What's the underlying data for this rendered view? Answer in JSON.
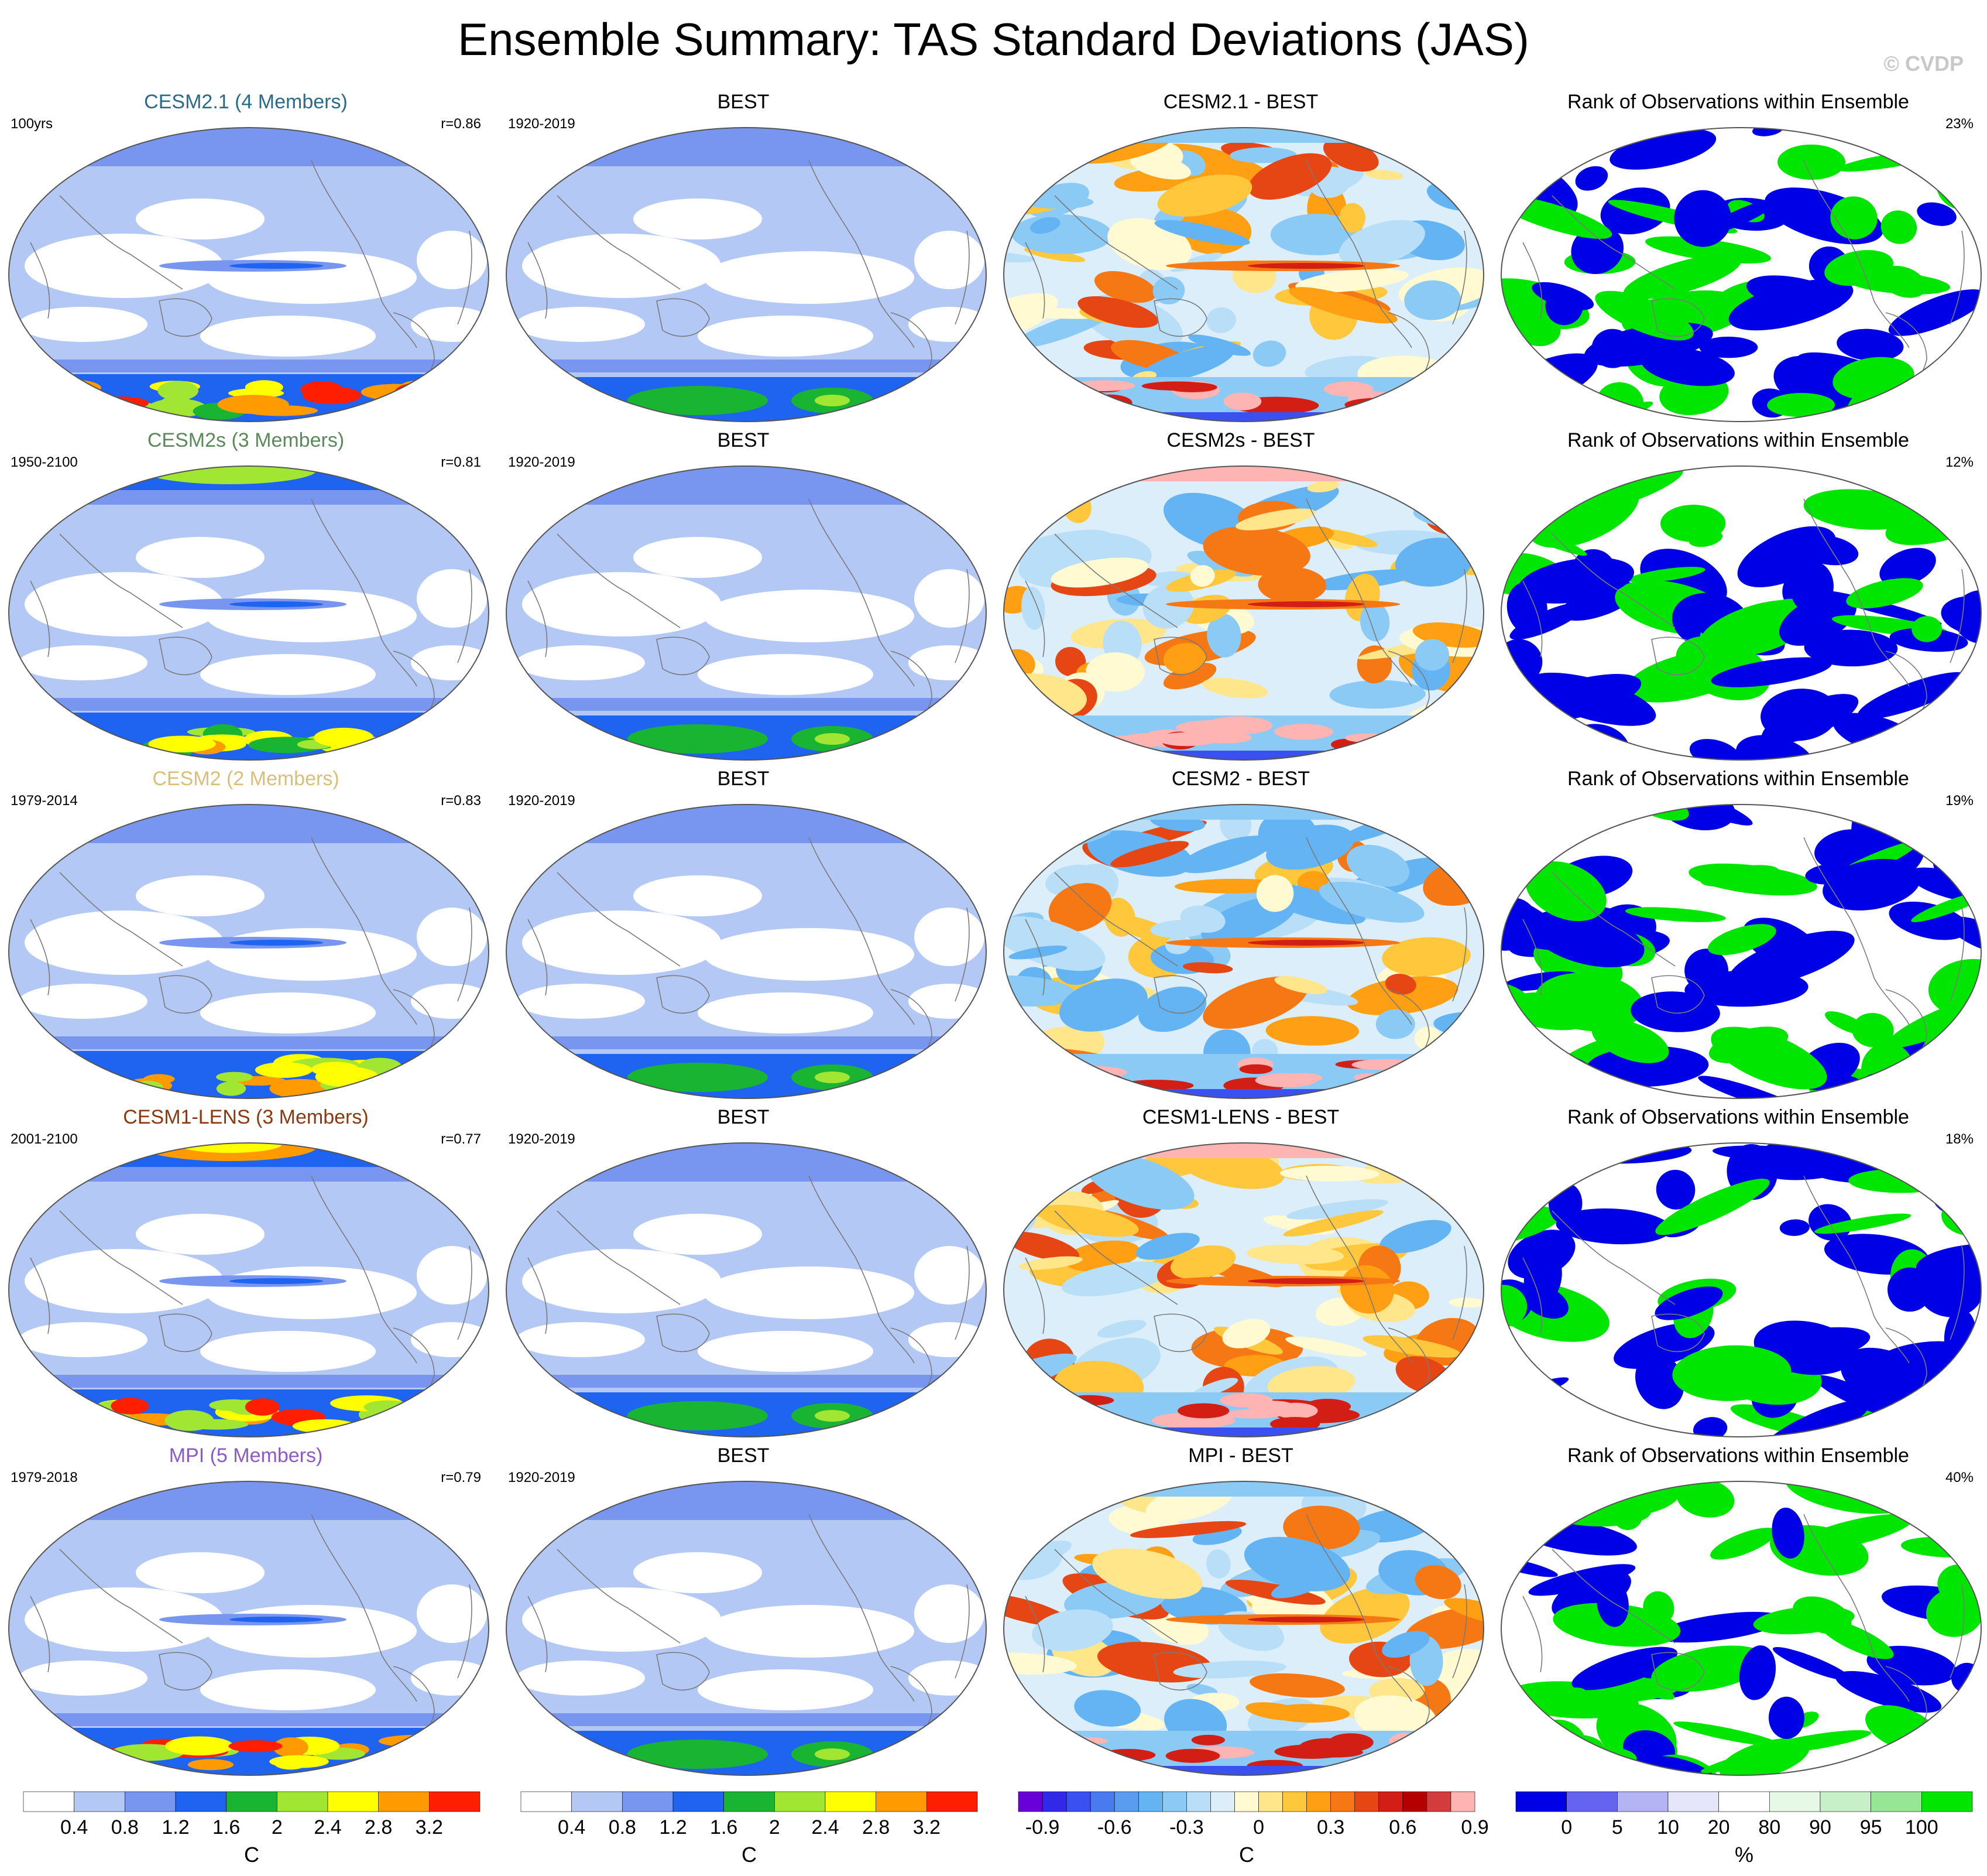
{
  "title": "Ensemble Summary: TAS Standard Deviations (JAS)",
  "watermark": "© CVDP",
  "rows": [
    {
      "model": {
        "title": "CESM2.1 (4 Members)",
        "title_color": "#2a6b8a",
        "left": "100yrs",
        "right": "r=0.86",
        "hi_arctic": 0.2,
        "hi_south": 0.8
      },
      "obs": {
        "title": "BEST",
        "left": "1920-2019"
      },
      "diff": {
        "title": "CESM2.1 - BEST",
        "warm": 0.45
      },
      "rank": {
        "title": "Rank of Observations within Ensemble",
        "right": "23%",
        "green_share": 0.45
      }
    },
    {
      "model": {
        "title": "CESM2s (3 Members)",
        "title_color": "#5a8a5a",
        "left": "1950-2100",
        "right": "r=0.81",
        "hi_arctic": 0.6,
        "hi_south": 0.7
      },
      "obs": {
        "title": "BEST",
        "left": "1920-2019"
      },
      "diff": {
        "title": "CESM2s - BEST",
        "warm": 0.65
      },
      "rank": {
        "title": "Rank of Observations within Ensemble",
        "right": "12%",
        "green_share": 0.35
      }
    },
    {
      "model": {
        "title": "CESM2 (2 Members)",
        "title_color": "#d8c078",
        "left": "1979-2014",
        "right": "r=0.83",
        "hi_arctic": 0.1,
        "hi_south": 0.75
      },
      "obs": {
        "title": "BEST",
        "left": "1920-2019"
      },
      "diff": {
        "title": "CESM2 - BEST",
        "warm": 0.55
      },
      "rank": {
        "title": "Rank of Observations within Ensemble",
        "right": "19%",
        "green_share": 0.4
      }
    },
    {
      "model": {
        "title": "CESM1-LENS (3 Members)",
        "title_color": "#8a3a10",
        "left": "2001-2100",
        "right": "r=0.77",
        "hi_arctic": 0.8,
        "hi_south": 0.8
      },
      "obs": {
        "title": "BEST",
        "left": "1920-2019"
      },
      "diff": {
        "title": "CESM1-LENS - BEST",
        "warm": 0.7
      },
      "rank": {
        "title": "Rank of Observations within Ensemble",
        "right": "18%",
        "green_share": 0.4
      }
    },
    {
      "model": {
        "title": "MPI (5 Members)",
        "title_color": "#8a5ac8",
        "left": "1979-2018",
        "right": "r=0.79",
        "hi_arctic": 0.1,
        "hi_south": 0.9
      },
      "obs": {
        "title": "BEST",
        "left": "1920-2019"
      },
      "diff": {
        "title": "MPI - BEST",
        "warm": 0.6
      },
      "rank": {
        "title": "Rank of Observations within Ensemble",
        "right": "40%",
        "green_share": 0.55
      }
    }
  ],
  "colorbars": [
    {
      "unit": "C",
      "colors": [
        "#ffffff",
        "#b4c8f5",
        "#7896f0",
        "#1e64f0",
        "#19b432",
        "#a0e632",
        "#ffff00",
        "#ff9b00",
        "#ff1e00"
      ],
      "labels": [
        "0.4",
        "0.8",
        "1.2",
        "1.6",
        "2",
        "2.4",
        "2.8",
        "3.2"
      ]
    },
    {
      "unit": "C",
      "colors": [
        "#ffffff",
        "#b4c8f5",
        "#7896f0",
        "#1e64f0",
        "#19b432",
        "#a0e632",
        "#ffff00",
        "#ff9b00",
        "#ff1e00"
      ],
      "labels": [
        "0.4",
        "0.8",
        "1.2",
        "1.6",
        "2",
        "2.4",
        "2.8",
        "3.2"
      ]
    },
    {
      "unit": "C",
      "colors": [
        "#6a00d8",
        "#3228e8",
        "#3a50f0",
        "#4a7af0",
        "#5a9cf0",
        "#64b4f4",
        "#8ccaf6",
        "#b8def8",
        "#dceefa",
        "#fffad2",
        "#ffe68a",
        "#ffc83c",
        "#ffa014",
        "#f57814",
        "#e64614",
        "#d21e14",
        "#b40000",
        "#d23c3c",
        "#ffb4b4"
      ],
      "labels": [
        "-0.9",
        "-0.6",
        "-0.3",
        "0",
        "0.3",
        "0.6",
        "0.9"
      ],
      "label_bounds": [
        1,
        4,
        7,
        10,
        13,
        16,
        19
      ]
    },
    {
      "unit": "%",
      "colors": [
        "#0000e6",
        "#6464f0",
        "#b4b4f5",
        "#e6e6fa",
        "#ffffff",
        "#e6f8e6",
        "#c8f0c8",
        "#96e696",
        "#00e600"
      ],
      "labels": [
        "0",
        "5",
        "10",
        "20",
        "80",
        "90",
        "95",
        "100"
      ]
    }
  ]
}
